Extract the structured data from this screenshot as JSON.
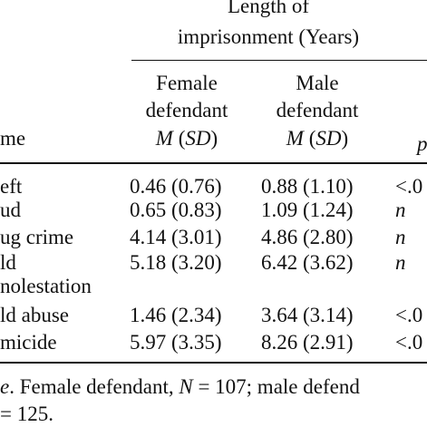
{
  "header": {
    "group_line1": "Length of",
    "group_line2": "imprisonment (Years)",
    "col1": {
      "line1": "Female",
      "line2": "defendant",
      "stat": [
        "M",
        "(",
        "SD",
        ")"
      ]
    },
    "col2": {
      "line1": "Male",
      "line2": "defendant",
      "stat": [
        "M",
        "(",
        "SD",
        ")"
      ]
    },
    "crime": "me",
    "p": "p"
  },
  "table": {
    "rows": [
      [
        "eft",
        "0.46 (0.76)",
        "0.88 (1.10)",
        "<.0"
      ],
      [
        "ud",
        "0.65 (0.83)",
        "1.09 (1.24)",
        "n"
      ],
      [
        "ug crime",
        "4.14 (3.01)",
        "4.86 (2.80)",
        "n"
      ],
      [
        "ld",
        "5.18 (3.20)",
        "6.42 (3.62)",
        "n"
      ],
      [
        "nolestation",
        "",
        "",
        ""
      ],
      [
        "ld abuse",
        "1.46 (2.34)",
        "3.64 (3.14)",
        "<.0"
      ],
      [
        "micide",
        "5.97 (3.35)",
        "8.26 (2.91)",
        "<.0"
      ]
    ]
  },
  "note": {
    "line1": [
      "e",
      ". Female defendant, ",
      "N",
      " = 107; male defend"
    ],
    "line2": "= 125."
  }
}
